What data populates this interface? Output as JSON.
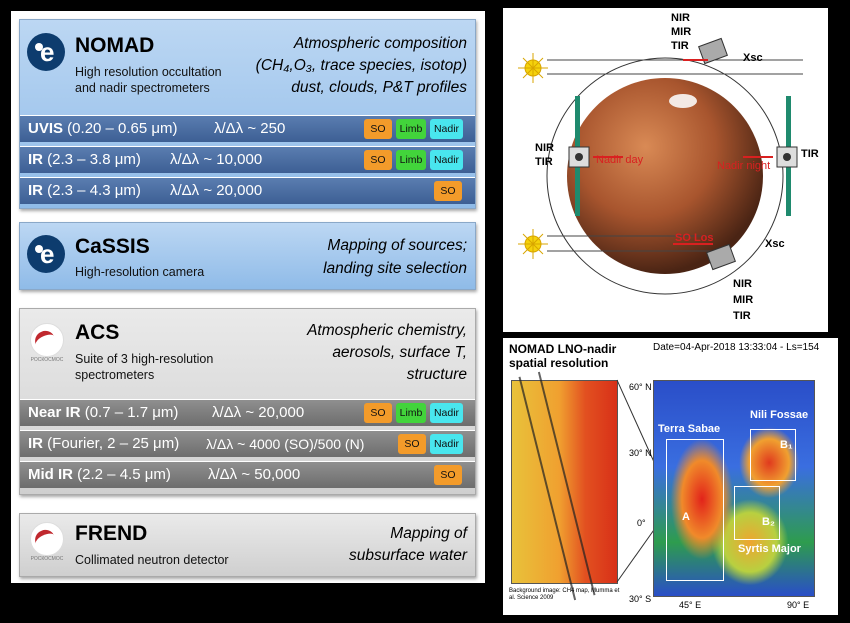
{
  "nomad": {
    "name": "NOMAD",
    "sub1": "High resolution occultation",
    "sub2": "and nadir spectrometers",
    "desc1": "Atmospheric composition",
    "desc2": "(CH₄,O₃, trace species, isotop)",
    "desc3": "dust, clouds, P&T profiles",
    "rows": [
      {
        "band": "UVIS",
        "range": " (0.20 – 0.65 μm)",
        "rp": "λ/Δλ ~ 250",
        "tags": [
          "SO",
          "Limb",
          "Nadir"
        ]
      },
      {
        "band": "IR",
        "range": " (2.3 – 3.8 μm)",
        "rp": "λ/Δλ ~ 10,000",
        "tags": [
          "SO",
          "Limb",
          "Nadir"
        ]
      },
      {
        "band": "IR",
        "range": " (2.3 – 4.3 μm)",
        "rp": "λ/Δλ ~ 20,000",
        "tags": [
          "SO"
        ]
      }
    ]
  },
  "cassis": {
    "name": "CaSSIS",
    "sub1": "High-resolution camera",
    "desc1": "Mapping of sources;",
    "desc2": "landing site selection"
  },
  "acs": {
    "name": "ACS",
    "sub1": "Suite of 3 high-resolution",
    "sub2": "spectrometers",
    "desc1": "Atmospheric chemistry,",
    "desc2": "aerosols, surface T,",
    "desc3": "structure",
    "rows": [
      {
        "band": "Near IR",
        "range": " (0.7 – 1.7 μm)",
        "rp": "λ/Δλ ~ 20,000",
        "tags": [
          "SO",
          "Limb",
          "Nadir"
        ]
      },
      {
        "band": "IR",
        "range": " (Fourier, 2 – 25 μm)",
        "rp": "λ/Δλ ~ 4000 (SO)/500 (N)",
        "tags": [
          "SO",
          "Nadir"
        ]
      },
      {
        "band": "Mid IR",
        "range": " (2.2 – 4.5 μm)",
        "rp": "λ/Δλ ~ 50,000",
        "tags": [
          "SO"
        ]
      }
    ]
  },
  "frend": {
    "name": "FREND",
    "sub1": "Collimated neutron detector",
    "desc1": "Mapping of",
    "desc2": "subsurface water"
  },
  "logo_text": "РОСКОСМОС",
  "orbit": {
    "nir_mir_tir": [
      "NIR",
      "MIR",
      "TIR"
    ],
    "left_label": [
      "NIR",
      "TIR"
    ],
    "right_label": "TIR",
    "nadir_day": "Nadir day",
    "nadir_night": "Nadir night",
    "so_los": "SO Los",
    "xsc": "Xsc"
  },
  "map": {
    "title1": "NOMAD LNO-nadir",
    "title2": "spatial resolution",
    "date": "Date=04-Apr-2018 13:33:04 - Ls=154",
    "lat_labels": [
      "60° N",
      "30° N",
      "0°",
      "30° S"
    ],
    "lon_labels": [
      "45° E",
      "90° E"
    ],
    "regions": [
      "Terra Sabae",
      "Nili Fossae",
      "Syrtis Major"
    ],
    "boxes": [
      "A",
      "B₁",
      "B₂"
    ],
    "credit": "Background image: CH4 map, Mumma et al. Science 2009"
  },
  "colors": {
    "so": "#f39b2a",
    "limb": "#42d43b",
    "nadir": "#49e6ee",
    "row_blue": "#4a6ea3",
    "row_gray": "#7a7a7a"
  }
}
